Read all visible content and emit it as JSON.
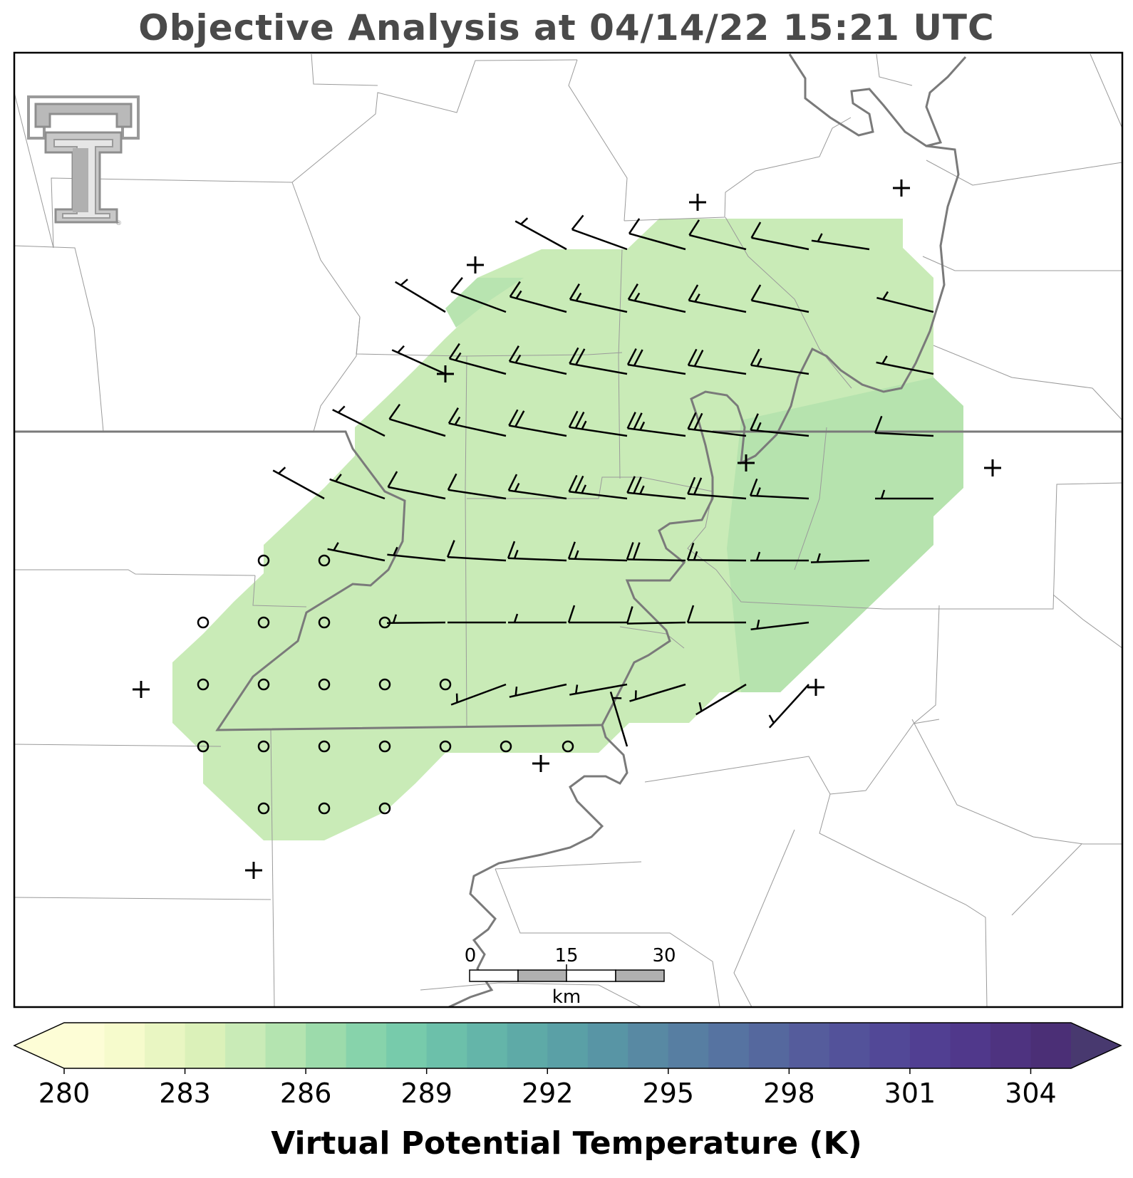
{
  "title": "Objective Analysis at 04/14/22 15:21 UTC",
  "colorbar": {
    "label": "Virtual Potential Temperature (K)",
    "ticks": [
      "280",
      "283",
      "286",
      "289",
      "292",
      "295",
      "298",
      "301",
      "304"
    ],
    "min": 280,
    "max": 305.5,
    "step": 1,
    "extend": "both",
    "colors": [
      "#fdfdd6",
      "#f6fbcc",
      "#e9f6c2",
      "#dbf1b9",
      "#c9ebb7",
      "#b4e4b0",
      "#9cdbab",
      "#87d3ab",
      "#77cbab",
      "#6cc0aa",
      "#64b5a9",
      "#5eaaa7",
      "#5aa0a6",
      "#5895a5",
      "#5889a3",
      "#577ea2",
      "#5673a1",
      "#55689e",
      "#555c9c",
      "#53529a",
      "#524897",
      "#513f92",
      "#50388b",
      "#4e3380",
      "#4b2f76",
      "#48396f"
    ]
  },
  "scale_bar": {
    "ticks": [
      "0",
      "15",
      "30"
    ],
    "unit": "km"
  },
  "analysis_field": {
    "variable": "virtual potential temperature",
    "level_K_typical": 284,
    "level_K_east": 285,
    "colors": {
      "fill": "#c9ebb7",
      "fill_east": "#b6e3ae",
      "fill_nw": "#b8e4b0"
    }
  },
  "logo": {
    "name": "double-T logo",
    "mark": "®"
  },
  "colors": {
    "border": "#777777",
    "county": "#9a9a9a",
    "barb": "#000000",
    "frame": "#000000"
  }
}
